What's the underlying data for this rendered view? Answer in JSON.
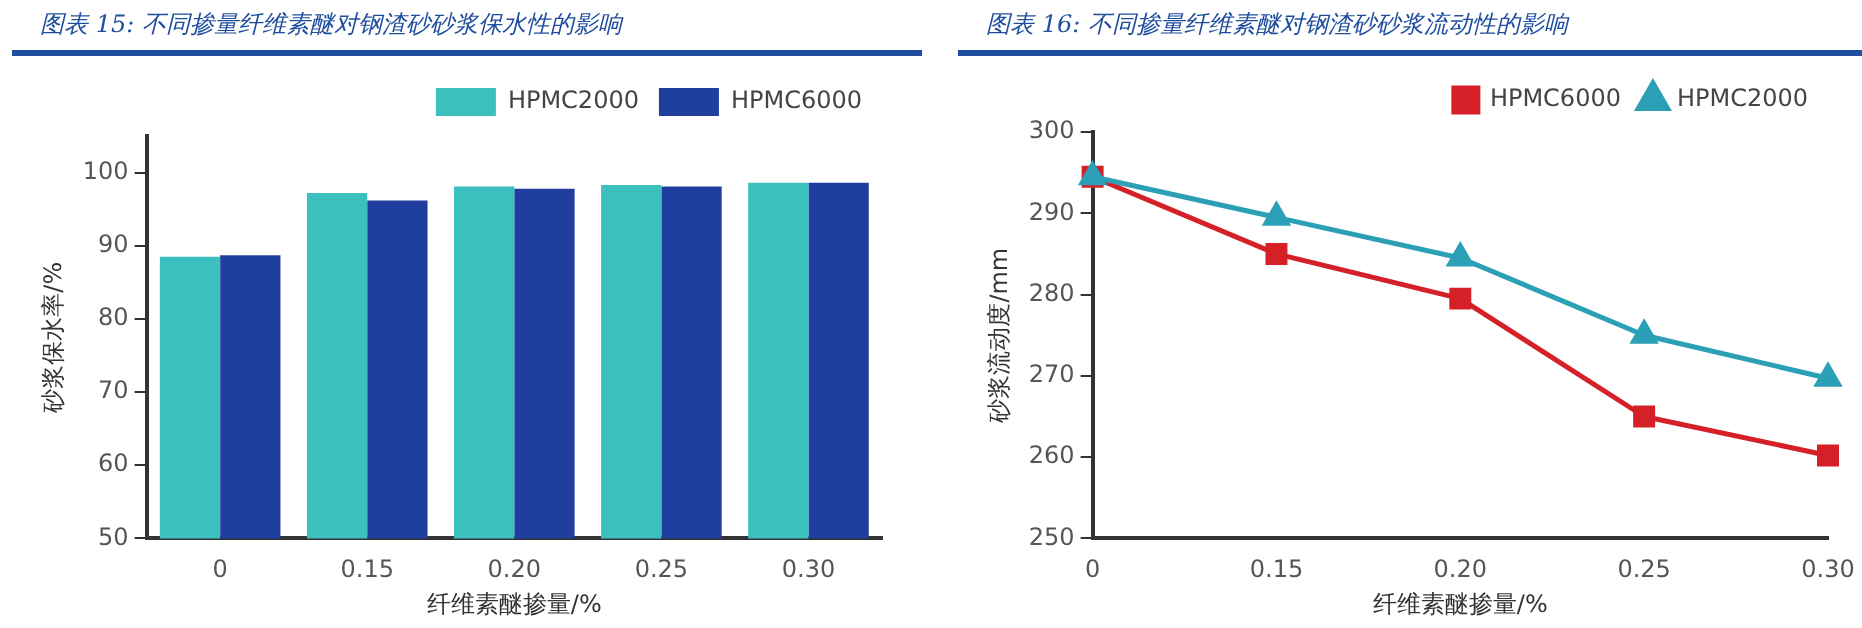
{
  "chart_data": [
    {
      "type": "bar",
      "title": "图表 15:  不同掺量纤维素醚对钢渣砂砂浆保水性的影响",
      "xlabel": "纤维素醚掺量/%",
      "ylabel": "砂浆保水率/%",
      "categories": [
        "0",
        "0.15",
        "0.20",
        "0.25",
        "0.30"
      ],
      "series": [
        {
          "name": "HPMC2000",
          "color": "#3cbfbf",
          "values": [
            88.5,
            97.2,
            98.1,
            98.3,
            98.6
          ]
        },
        {
          "name": "HPMC6000",
          "color": "#1f3e9e",
          "values": [
            88.7,
            96.2,
            97.8,
            98.1,
            98.6
          ]
        }
      ],
      "ylim": [
        50,
        105
      ],
      "yticks": [
        50,
        60,
        70,
        80,
        90,
        100
      ],
      "legend": "top right"
    },
    {
      "type": "line",
      "title": "图表 16:  不同掺量纤维素醚对钢渣砂砂浆流动性的影响",
      "xlabel": "纤维素醚掺量/%",
      "ylabel": "砂浆流动度/mm",
      "categories": [
        "0",
        "0.15",
        "0.20",
        "0.25",
        "0.30"
      ],
      "series": [
        {
          "name": "HPMC6000",
          "color": "#d42026",
          "marker": "square",
          "values": [
            294.5,
            285,
            279.5,
            265,
            260.2
          ]
        },
        {
          "name": "HPMC2000",
          "color": "#2a9fb5",
          "marker": "triangle",
          "values": [
            294.5,
            289.5,
            284.5,
            275,
            269.7
          ]
        }
      ],
      "ylim": [
        250,
        300
      ],
      "yticks": [
        250,
        260,
        270,
        280,
        290,
        300
      ],
      "legend": "top right"
    }
  ]
}
